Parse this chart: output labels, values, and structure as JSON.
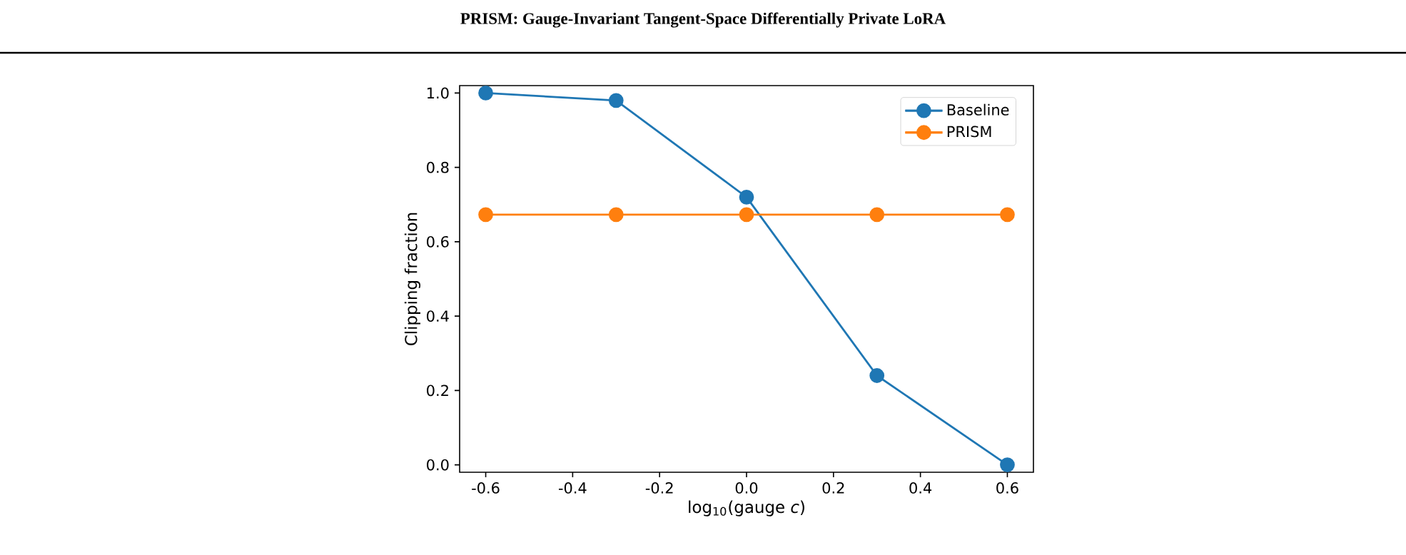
{
  "chart_data": {
    "type": "line",
    "title": "PRISM: Gauge-Invariant Tangent-Space Differentially Private LoRA",
    "xlabel": "log$_{10}$(gauge *c*)",
    "ylabel": "Clipping fraction",
    "x": [
      -0.6,
      -0.3,
      0.0,
      0.3,
      0.6
    ],
    "series": [
      {
        "name": "Baseline",
        "color": "#1f77b4",
        "values": [
          1.0,
          0.98,
          0.72,
          0.24,
          0.0
        ]
      },
      {
        "name": "PRISM",
        "color": "#ff7f0e",
        "values": [
          0.673,
          0.673,
          0.673,
          0.673,
          0.673
        ]
      }
    ],
    "xlim": [
      -0.66,
      0.66
    ],
    "ylim": [
      -0.02,
      1.02
    ],
    "xticks": [
      -0.6,
      -0.4,
      -0.2,
      {
        "value": 0.0,
        "label": "0.0"
      },
      0.2,
      0.4,
      0.6
    ],
    "yticks": [
      {
        "value": 0.0,
        "label": "0.0"
      },
      0.2,
      0.4,
      0.6,
      0.8,
      {
        "value": 1.0,
        "label": "1.0"
      }
    ],
    "legend": "top right",
    "marker": "circle",
    "line_style": "solid",
    "grid": false
  }
}
